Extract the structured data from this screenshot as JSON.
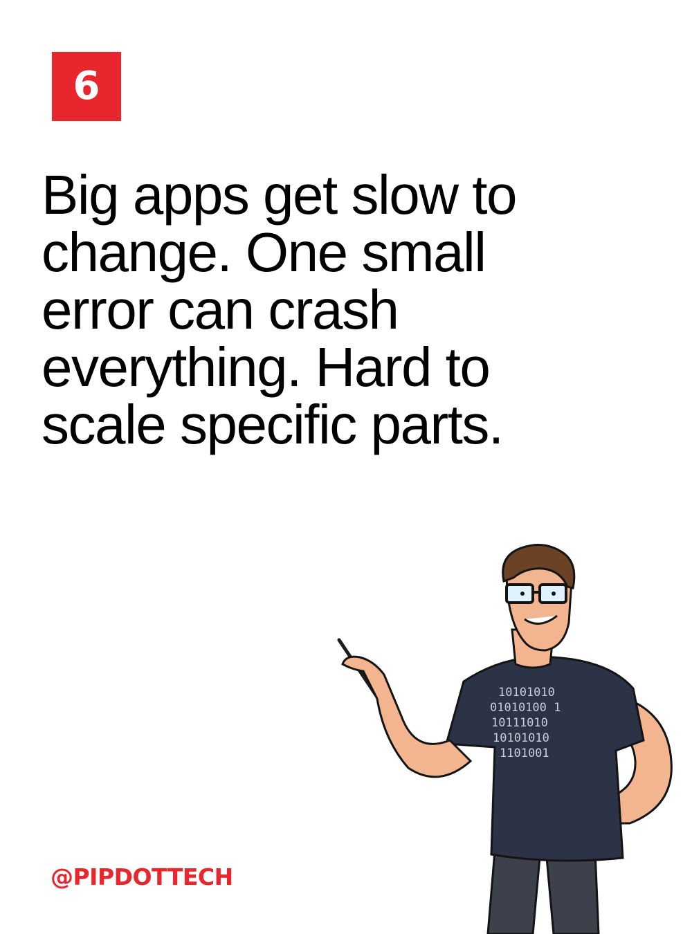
{
  "slide": {
    "number": "6",
    "headline": "Big apps get slow to change. One small error can crash everything. Hard to scale specific parts.",
    "handle": "@PIPDOTTECH"
  },
  "mascot": {
    "shirt_lines": [
      "10101010",
      "01010100 1",
      "10111010",
      "10101010",
      "1101001"
    ],
    "icon": "developer-mascot-icon"
  },
  "colors": {
    "accent": "#e8262d",
    "text": "#000000",
    "background": "#ffffff",
    "shirt": "#2c3346"
  }
}
